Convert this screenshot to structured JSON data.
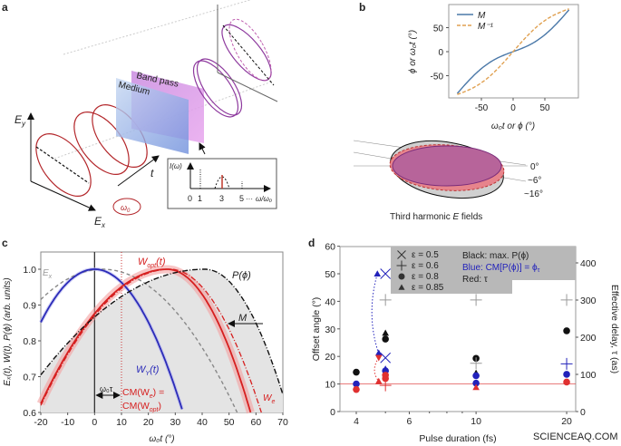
{
  "panel_labels": {
    "a": "a",
    "b": "b",
    "c": "c",
    "d": "d"
  },
  "panel_a": {
    "ey": {
      "main": "E",
      "sub": "y"
    },
    "ex": {
      "main": "E",
      "sub": "x"
    },
    "t": "t",
    "omega0": {
      "main": "ω",
      "sub": "0"
    },
    "medium": "Medium",
    "band_pass": "Band pass",
    "inset": {
      "ylabel": "I(ω)",
      "ticks": [
        "0",
        "1",
        "3",
        "5"
      ],
      "dots": "···",
      "xlabel": "ω/ω₀"
    },
    "colors": {
      "fundamental": "#c0392b",
      "harmonic": "#8e3a9e",
      "medium": "#8fb0e6",
      "band_pass": "#d88ee6"
    }
  },
  "panel_b": {
    "ellipse_angles": [
      "0°",
      "~6°",
      "~16°"
    ],
    "caption": {
      "before": "Third harmonic ",
      "var": "E",
      "after": " fields"
    }
  },
  "panel_d_extra": {
    "text_box": {
      "black": "Black: max. P(ϕ)",
      "blue": "Blue: CM[P(ϕ)] = ϕ",
      "blue_sub": "τ",
      "red": "Red: τ"
    }
  },
  "watermark": "SCIENCEAQ.COM",
  "chart_data": [
    {
      "id": "b",
      "type": "line",
      "xlabel": "ω₀t or ϕ (°)",
      "ylabel": "ϕ or ω₀t (°)",
      "xlim": [
        -90,
        90
      ],
      "ylim": [
        -90,
        90
      ],
      "xticks": [
        -50,
        0,
        50
      ],
      "yticks": [
        -50,
        0,
        50
      ],
      "legend": "top-left",
      "series": [
        {
          "name": "M",
          "color": "#4a78a8",
          "style": "solid",
          "x": [
            -90,
            -70,
            -50,
            -30,
            -10,
            0,
            10,
            30,
            50,
            70,
            90
          ],
          "y": [
            -90,
            -60,
            -35,
            -17,
            -5,
            0,
            5,
            17,
            35,
            60,
            90
          ]
        },
        {
          "name": "M⁻¹",
          "color": "#e0a050",
          "style": "dashed",
          "x": [
            -90,
            -70,
            -50,
            -30,
            -10,
            0,
            10,
            30,
            50,
            70,
            90
          ],
          "y": [
            -90,
            -80,
            -65,
            -43,
            -15,
            0,
            15,
            43,
            65,
            80,
            90
          ]
        }
      ]
    },
    {
      "id": "c",
      "type": "line",
      "xlabel": "ω₀t (°)",
      "ylabel": "Eₓ(t), W(t), P(ϕ) (arb. units)",
      "xlim": [
        -20,
        70
      ],
      "ylim": [
        0.6,
        1.0
      ],
      "xticks": [
        -20,
        -10,
        0,
        10,
        20,
        30,
        40,
        50,
        60,
        70
      ],
      "yticks": [
        "0.6",
        "0.7",
        "0.8",
        "0.9",
        "1.0"
      ],
      "series": [
        {
          "name": "Eₓ",
          "color": "#888888",
          "style": "dashed",
          "peak_x": 3,
          "x": [
            -20,
            0,
            10,
            20,
            30,
            40,
            53
          ],
          "y": [
            0.92,
            1.0,
            0.99,
            0.95,
            0.88,
            0.77,
            0.6
          ]
        },
        {
          "name": "W_y(t)",
          "color": "#2b2bb8",
          "style": "solid",
          "peak_x": 0,
          "x": [
            -20,
            -10,
            0,
            10,
            20,
            33
          ],
          "y": [
            0.87,
            0.96,
            1.0,
            0.96,
            0.85,
            0.6
          ]
        },
        {
          "name": "W_opt(t)",
          "color": "#d62020",
          "style": "solid",
          "peak_x": 27,
          "x": [
            -20,
            0,
            10,
            20,
            27,
            40,
            50,
            58
          ],
          "y": [
            0.63,
            0.81,
            0.9,
            0.97,
            1.0,
            0.93,
            0.8,
            0.6
          ]
        },
        {
          "name": "W_e",
          "color": "#d62020",
          "style": "dashdot",
          "peak_x": 28,
          "x": [
            -20,
            0,
            10,
            20,
            28,
            40,
            50,
            62
          ],
          "y": [
            0.64,
            0.82,
            0.91,
            0.97,
            1.0,
            0.95,
            0.84,
            0.6
          ]
        },
        {
          "name": "P(ϕ)",
          "color": "#111111",
          "style": "dashdot",
          "peak_x": 41,
          "x": [
            -20,
            0,
            10,
            20,
            30,
            41,
            50,
            60,
            70
          ],
          "y": [
            0.71,
            0.82,
            0.87,
            0.92,
            0.97,
            1.0,
            0.97,
            0.87,
            0.65
          ]
        }
      ],
      "annotations": {
        "w_opt": {
          "main": "W",
          "sub": "opt",
          "after": "(t)"
        },
        "e_x": {
          "main": "E",
          "sub": "x"
        },
        "p_phi": "P(ϕ)",
        "m": "M",
        "w_y": {
          "main": "W",
          "sub": "Y",
          "after": "(t)"
        },
        "w_e": {
          "main": "W",
          "sub": "e"
        },
        "omega_tau": "ω₀τ",
        "cm1": "CM(W",
        "cm1_sub": "e",
        "cm1_after": ") =",
        "cm2": "CM(W",
        "cm2_sub": "opt",
        "cm2_after": ")"
      },
      "vertical_lines": [
        0,
        10
      ]
    },
    {
      "id": "d",
      "type": "scatter",
      "xlabel": "Pulse duration (fs)",
      "ylabel": "Offset angle (°)",
      "ylabel_right": "Effective delay, τ (as)",
      "x_scale": "log",
      "xlim": [
        3.6,
        22
      ],
      "ylim": [
        0,
        60
      ],
      "ylim_right": [
        0,
        440
      ],
      "xticks": [
        4,
        6,
        10,
        20
      ],
      "yticks": [
        0,
        10,
        20,
        30,
        40,
        50,
        60
      ],
      "yticks_right": [
        0,
        100,
        200,
        300,
        400
      ],
      "hline": 10,
      "legend": [
        {
          "marker": "x",
          "label": "ε = 0.5"
        },
        {
          "marker": "+",
          "label": "ε = 0.6"
        },
        {
          "marker": "circle",
          "label": "ε = 0.8"
        },
        {
          "marker": "triangle",
          "label": "ε = 0.85"
        }
      ],
      "colors": {
        "black": "#111111",
        "blue": "#2222bb",
        "red": "#e03030",
        "gray": "#9a9a9a"
      },
      "points": [
        {
          "x": 4,
          "y": 14.3,
          "marker": "circle",
          "color": "black"
        },
        {
          "x": 4,
          "y": 10,
          "marker": "circle",
          "color": "blue"
        },
        {
          "x": 4,
          "y": 8,
          "marker": "circle",
          "color": "red"
        },
        {
          "x": 5,
          "y": 50,
          "marker": "x",
          "color": "blue"
        },
        {
          "x": 5,
          "y": 40.5,
          "marker": "+",
          "color": "gray"
        },
        {
          "x": 5,
          "y": 28.5,
          "marker": "triangle",
          "color": "black"
        },
        {
          "x": 5,
          "y": 26.3,
          "marker": "circle",
          "color": "black"
        },
        {
          "x": 5,
          "y": 19.5,
          "marker": "x",
          "color": "blue"
        },
        {
          "x": 5,
          "y": 15.5,
          "marker": "triangle",
          "color": "blue"
        },
        {
          "x": 5,
          "y": 14.8,
          "marker": "circle",
          "color": "blue"
        },
        {
          "x": 5,
          "y": 13.2,
          "marker": "circle",
          "color": "red"
        },
        {
          "x": 5,
          "y": 12,
          "marker": "circle",
          "color": "red"
        },
        {
          "x": 5,
          "y": 9.5,
          "marker": "+",
          "color": "red"
        },
        {
          "x": 4.75,
          "y": 21.3,
          "marker": "triangle",
          "color": "blue"
        },
        {
          "x": 4.75,
          "y": 19.5,
          "marker": "triangle-down",
          "color": "red"
        },
        {
          "x": 4.75,
          "y": 11,
          "marker": "triangle",
          "color": "red"
        },
        {
          "x": 4.7,
          "y": 50,
          "marker": "triangle",
          "color": "blue"
        },
        {
          "x": 10,
          "y": 40.5,
          "marker": "+",
          "color": "gray"
        },
        {
          "x": 10,
          "y": 19.3,
          "marker": "circle",
          "color": "black"
        },
        {
          "x": 10,
          "y": 17.5,
          "marker": "+",
          "color": "gray"
        },
        {
          "x": 10,
          "y": 14,
          "marker": "triangle",
          "color": "black"
        },
        {
          "x": 10,
          "y": 13,
          "marker": "circle",
          "color": "blue"
        },
        {
          "x": 10,
          "y": 10.3,
          "marker": "circle",
          "color": "blue"
        },
        {
          "x": 10,
          "y": 8.8,
          "marker": "triangle",
          "color": "red"
        },
        {
          "x": 20,
          "y": 40.5,
          "marker": "+",
          "color": "gray"
        },
        {
          "x": 20,
          "y": 29.3,
          "marker": "circle",
          "color": "black"
        },
        {
          "x": 20,
          "y": 17.3,
          "marker": "+",
          "color": "blue"
        },
        {
          "x": 20,
          "y": 13.5,
          "marker": "circle",
          "color": "blue"
        },
        {
          "x": 20,
          "y": 10.7,
          "marker": "circle",
          "color": "red"
        }
      ]
    }
  ]
}
